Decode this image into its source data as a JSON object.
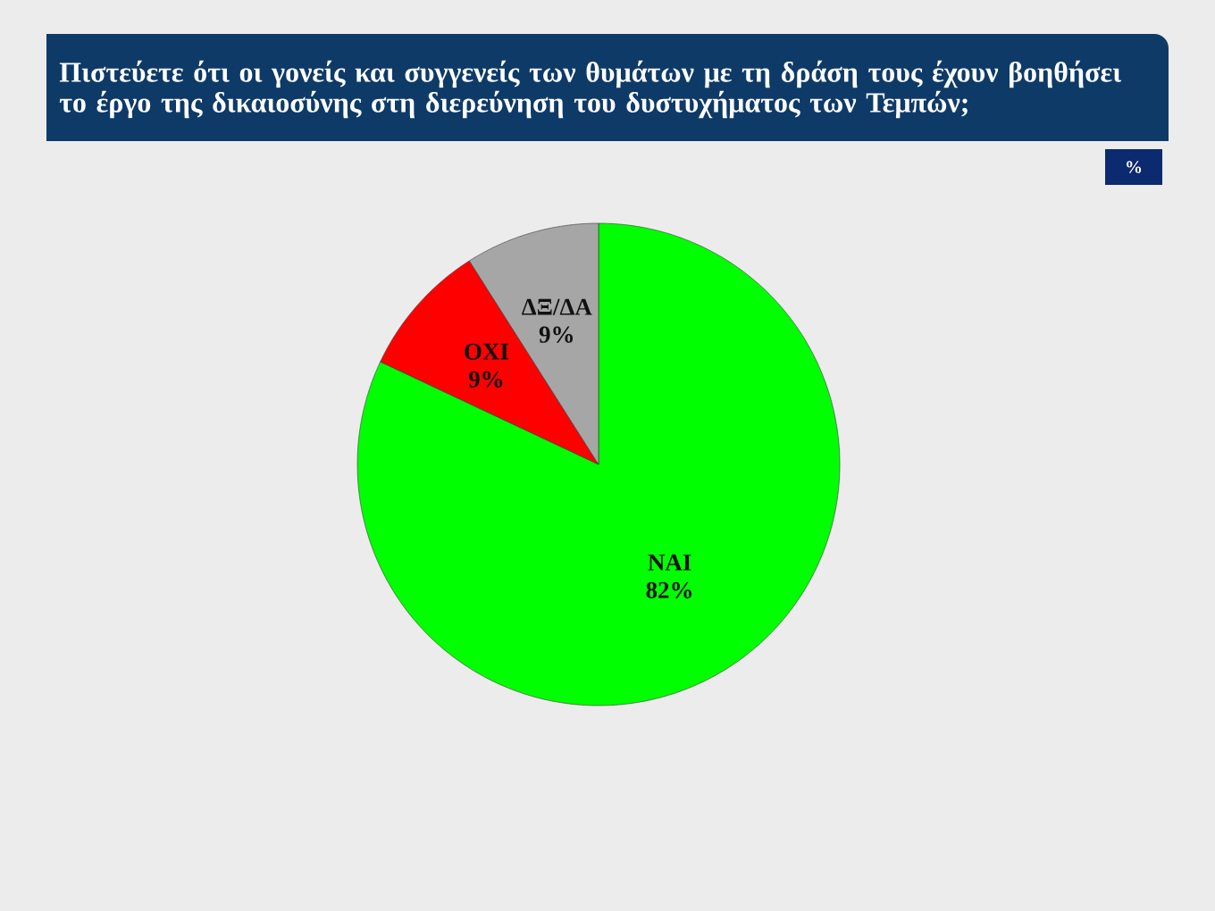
{
  "chart_data": {
    "type": "pie",
    "title": "Πιστεύετε ότι οι γονείς και συγγενείς των θυμάτων με τη δράση τους έχουν βοηθήσει το έργο της δικαιοσύνης στη διερεύνηση του δυστυχήματος των Τεμπών;",
    "categories": [
      "ΝΑΙ",
      "ΟΧΙ",
      "ΔΞ/ΔΑ"
    ],
    "values": [
      82,
      9,
      9
    ],
    "colors": [
      "#00ff00",
      "#ff0000",
      "#a6a6a6"
    ],
    "value_labels": [
      "82%",
      "9%",
      "9%"
    ],
    "annotations": [
      "%"
    ]
  }
}
